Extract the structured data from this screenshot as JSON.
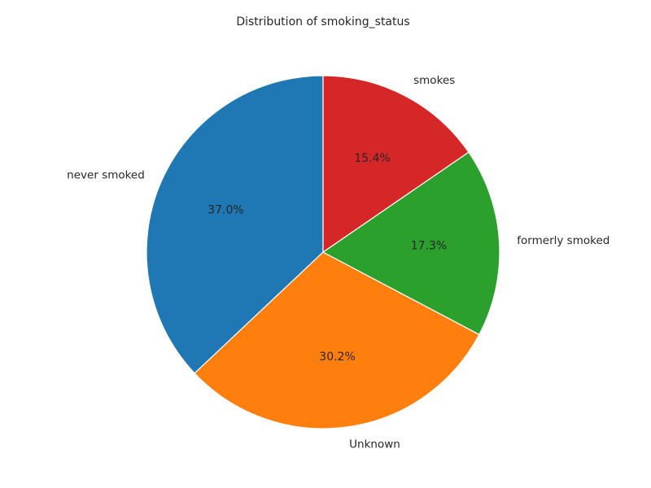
{
  "chart_data": {
    "type": "pie",
    "title": "Distribution of smoking_status",
    "start_angle_deg": 90,
    "direction": "counterclockwise",
    "legend": "none",
    "slices": [
      {
        "label": "never smoked",
        "value": 37.0,
        "pct_label": "37.0%",
        "color": "#1f77b4"
      },
      {
        "label": "Unknown",
        "value": 30.2,
        "pct_label": "30.2%",
        "color": "#ff7f0e"
      },
      {
        "label": "formerly smoked",
        "value": 17.3,
        "pct_label": "17.3%",
        "color": "#2ca02c"
      },
      {
        "label": "smokes",
        "value": 15.4,
        "pct_label": "15.4%",
        "color": "#d62728"
      }
    ]
  }
}
